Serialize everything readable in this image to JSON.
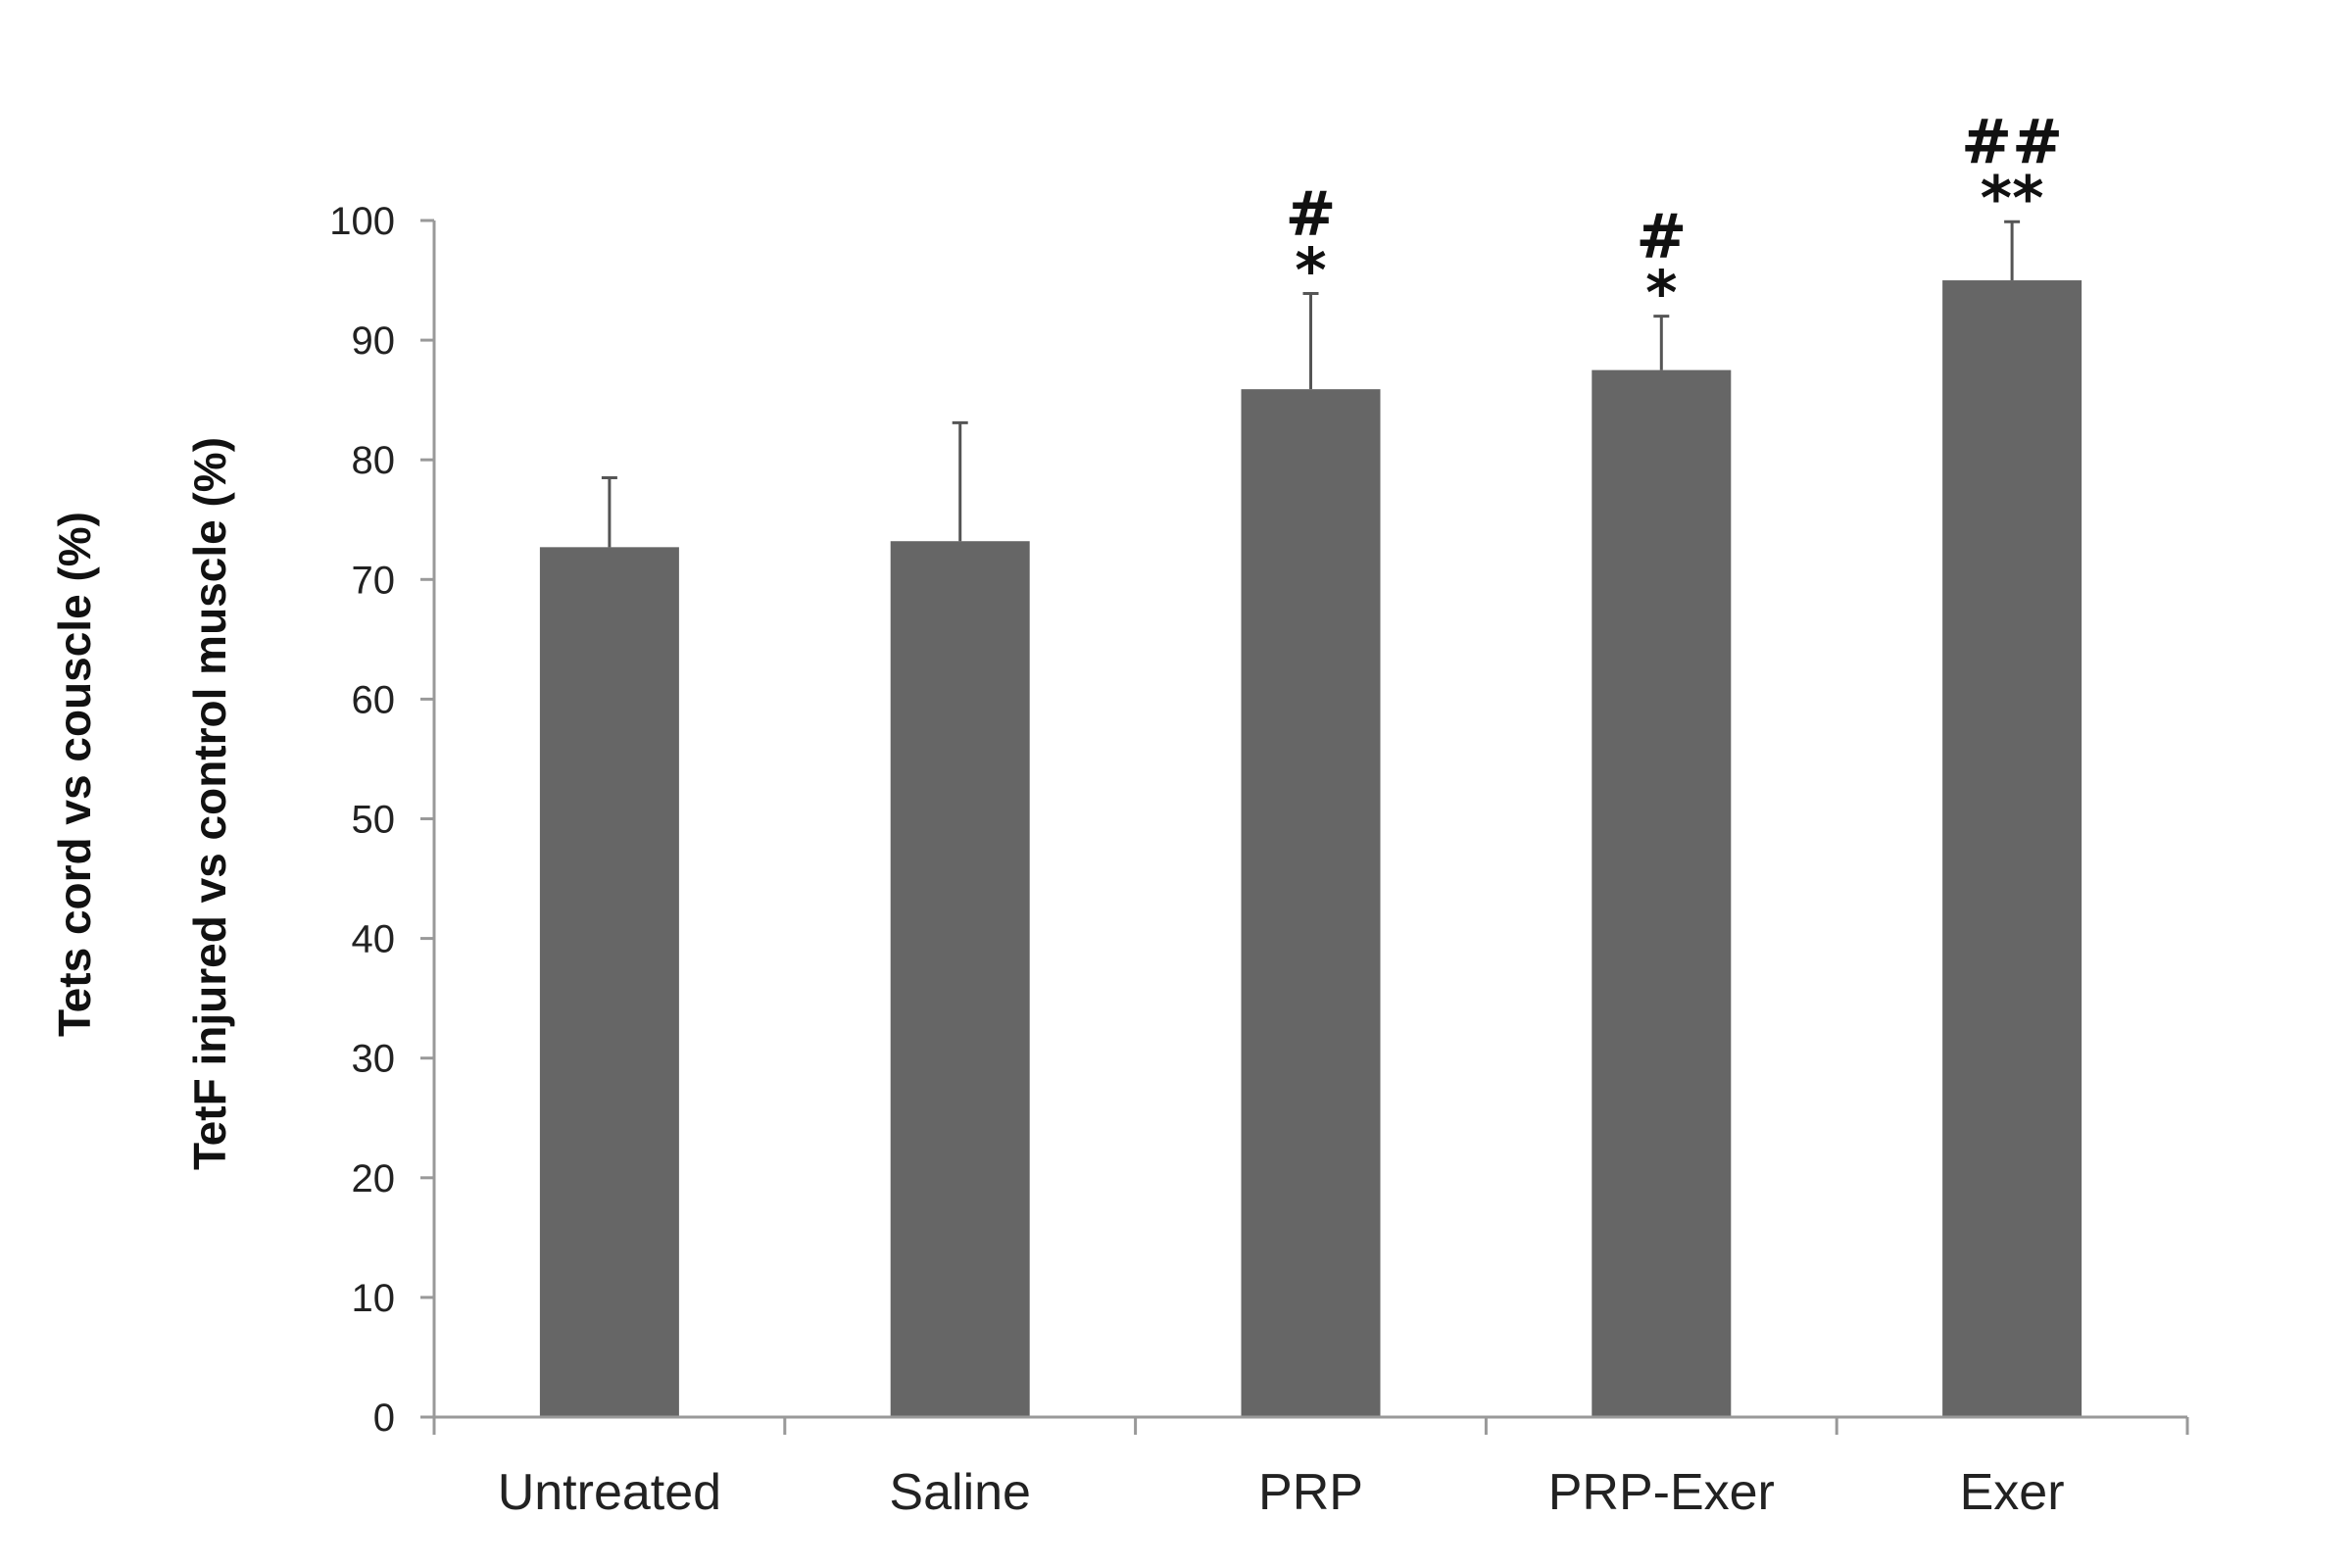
{
  "chart_data": {
    "type": "bar",
    "title": "",
    "xlabel": "",
    "ylabel_lines": [
      "Tets cord vs couscle (%)",
      "TetF injured vs control muscle (%)"
    ],
    "ylim": [
      0,
      100
    ],
    "yticks": [
      0,
      10,
      20,
      30,
      40,
      50,
      60,
      70,
      80,
      90,
      100
    ],
    "categories": [
      "Untreated",
      "Saline",
      "PRP",
      "PRP-Exer",
      "Exer"
    ],
    "values": [
      72.7,
      73.2,
      85.9,
      87.5,
      95.0
    ],
    "error_upper": [
      5.8,
      9.9,
      8.0,
      4.5,
      4.9
    ],
    "significance": [
      {
        "hash": "",
        "star": ""
      },
      {
        "hash": "",
        "star": ""
      },
      {
        "hash": "#",
        "star": "*"
      },
      {
        "hash": "#",
        "star": "*"
      },
      {
        "hash": "##",
        "star": "**"
      }
    ],
    "bar_color": "#666666",
    "grid": false,
    "legend": "none"
  }
}
